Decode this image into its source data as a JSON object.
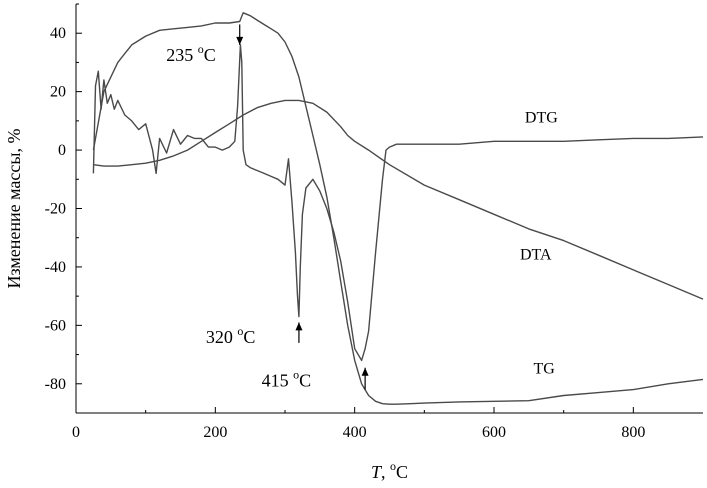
{
  "chart_data": {
    "type": "line",
    "xlabel": "T, °C",
    "xlabel_main": "T",
    "xlabel_unit": ", ",
    "xlabel_unit_sup": "o",
    "xlabel_unit_end": "C",
    "ylabel": "Изменение массы, %",
    "xlim": [
      0,
      900
    ],
    "ylim": [
      -90,
      50
    ],
    "xticks": [
      0,
      200,
      400,
      600,
      800
    ],
    "yticks": [
      -80,
      -60,
      -40,
      -20,
      0,
      20,
      40
    ],
    "grid": false,
    "series": [
      {
        "name": "TG",
        "x": [
          25,
          40,
          60,
          80,
          100,
          120,
          140,
          160,
          180,
          200,
          220,
          235,
          240,
          250,
          260,
          270,
          280,
          290,
          300,
          310,
          320,
          330,
          340,
          350,
          360,
          370,
          380,
          390,
          400,
          410,
          420,
          430,
          440,
          450,
          460,
          480,
          500,
          550,
          600,
          650,
          700,
          750,
          800,
          850,
          900
        ],
        "y": [
          0,
          20,
          30,
          36,
          39,
          41,
          41.5,
          42,
          42.5,
          43.5,
          43.5,
          44,
          47,
          46,
          44.5,
          43,
          41.5,
          40,
          37,
          32,
          25,
          15,
          5,
          -5,
          -16,
          -30,
          -45,
          -60,
          -72,
          -80,
          -84,
          -86,
          -86.8,
          -87,
          -87,
          -86.8,
          -86.6,
          -86.2,
          -86,
          -85.8,
          -84,
          -83,
          -82,
          -80,
          -78.5
        ]
      },
      {
        "name": "DTA",
        "x": [
          25,
          40,
          60,
          80,
          100,
          120,
          140,
          160,
          180,
          200,
          220,
          240,
          260,
          280,
          300,
          320,
          340,
          360,
          380,
          390,
          400,
          420,
          450,
          500,
          550,
          600,
          650,
          700,
          750,
          800,
          850,
          900
        ],
        "y": [
          -5,
          -5.5,
          -5.5,
          -5,
          -4.5,
          -3.5,
          -2,
          0,
          3,
          6,
          9,
          12,
          14.5,
          16,
          17,
          17,
          16,
          13,
          8,
          5,
          3,
          0,
          -5,
          -12,
          -17,
          -22,
          -27,
          -31,
          -36,
          -41,
          -46,
          -51
        ]
      },
      {
        "name": "DTG",
        "x": [
          25,
          28,
          32,
          36,
          40,
          45,
          50,
          55,
          60,
          70,
          80,
          90,
          100,
          110,
          115,
          120,
          130,
          140,
          150,
          160,
          170,
          180,
          190,
          200,
          210,
          220,
          228,
          232,
          236,
          238,
          240,
          244,
          250,
          260,
          270,
          280,
          290,
          300,
          305,
          310,
          315,
          318,
          320,
          322,
          325,
          330,
          340,
          350,
          360,
          370,
          380,
          390,
          400,
          410,
          415,
          420,
          430,
          440,
          445,
          450,
          460,
          500,
          550,
          600,
          650,
          700,
          750,
          800,
          850,
          900
        ],
        "y": [
          -8,
          22,
          27,
          14,
          24,
          16,
          19,
          14,
          17,
          12,
          10,
          7,
          9,
          0,
          -8,
          4,
          -1,
          7,
          2,
          5,
          4,
          4,
          1,
          1,
          0,
          1,
          3,
          15,
          36,
          30,
          0,
          -5,
          -6,
          -7,
          -8,
          -9,
          -10,
          -12,
          -3,
          -18,
          -35,
          -50,
          -57,
          -40,
          -22,
          -13,
          -10,
          -14,
          -20,
          -28,
          -38,
          -52,
          -68,
          -72,
          -68,
          -62,
          -35,
          -10,
          0,
          1,
          2,
          2,
          2,
          3,
          3,
          3,
          3.5,
          4,
          4,
          4.5
        ]
      }
    ],
    "series_labels": [
      {
        "text": "TG",
        "x": 672,
        "y": -76.5
      },
      {
        "text": "DTA",
        "x": 660,
        "y": -37.5
      },
      {
        "text": "DTG",
        "x": 668,
        "y": 9.5
      }
    ],
    "annotations": [
      {
        "value": "235",
        "unit_sup": "o",
        "unit": "C",
        "arrow_x": 235,
        "arrow_from": 43,
        "arrow_to": 36,
        "text_x": 165,
        "text_y": 30.5
      },
      {
        "value": "320",
        "unit_sup": "o",
        "unit": "C",
        "arrow_x": 320,
        "arrow_from": -66,
        "arrow_to": -59,
        "text_x": 222,
        "text_y": -66
      },
      {
        "value": "415",
        "unit_sup": "o",
        "unit": "C",
        "arrow_x": 415,
        "arrow_from": -82,
        "arrow_to": -74.5,
        "text_x": 302,
        "text_y": -81
      }
    ]
  }
}
